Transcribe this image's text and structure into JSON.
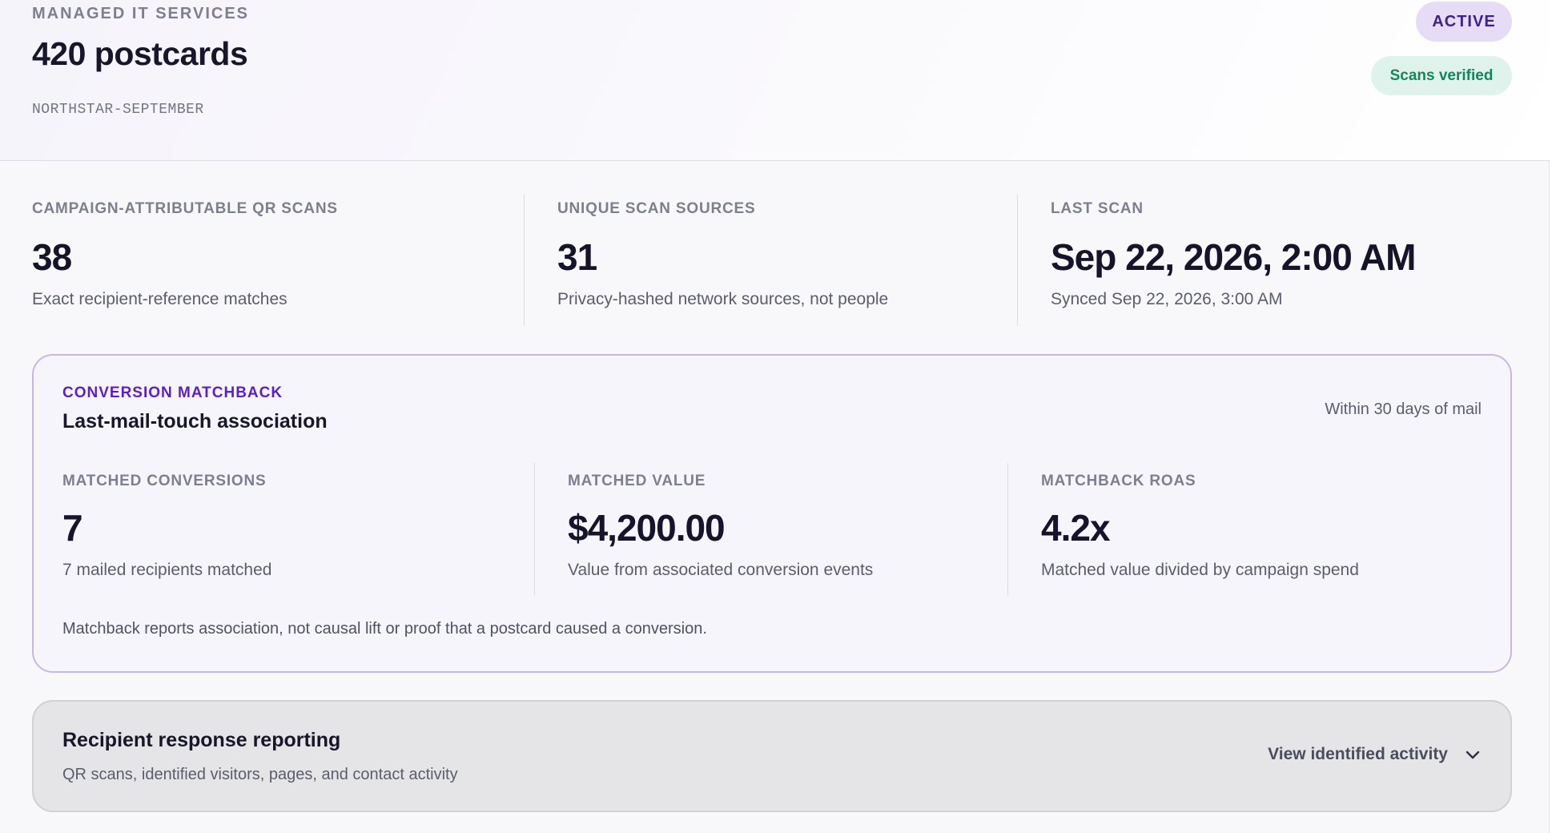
{
  "header": {
    "eyebrow": "MANAGED IT SERVICES",
    "title": "420 postcards",
    "campaign_code": "NORTHSTAR-SEPTEMBER",
    "status_badge": "ACTIVE",
    "scan_badge": "Scans verified"
  },
  "stats": [
    {
      "label": "CAMPAIGN-ATTRIBUTABLE QR SCANS",
      "value": "38",
      "note": "Exact recipient-reference matches"
    },
    {
      "label": "UNIQUE SCAN SOURCES",
      "value": "31",
      "note": "Privacy-hashed network sources, not people"
    },
    {
      "label": "LAST SCAN",
      "value": "Sep 22, 2026, 2:00 AM",
      "note": "Synced Sep 22, 2026, 3:00 AM"
    }
  ],
  "matchback": {
    "eyebrow": "CONVERSION MATCHBACK",
    "title": "Last-mail-touch association",
    "window": "Within 30 days of mail",
    "stats": [
      {
        "label": "MATCHED CONVERSIONS",
        "value": "7",
        "note": "7 mailed recipients matched"
      },
      {
        "label": "MATCHED VALUE",
        "value": "$4,200.00",
        "note": "Value from associated conversion events"
      },
      {
        "label": "MATCHBACK ROAS",
        "value": "4.2x",
        "note": "Matched value divided by campaign spend"
      }
    ],
    "disclaimer": "Matchback reports association, not causal lift or proof that a postcard caused a conversion."
  },
  "reporting": {
    "title": "Recipient response reporting",
    "subtitle": "QR scans, identified visitors, pages, and contact activity",
    "toggle_label": "View identified activity",
    "toggle_icon": "chevron-down-icon"
  },
  "colors": {
    "accent_purple": "#5b1fc9",
    "active_badge_bg": "#e7dcf6",
    "verified_text": "#16855c",
    "verified_bg": "#dff3ec"
  }
}
